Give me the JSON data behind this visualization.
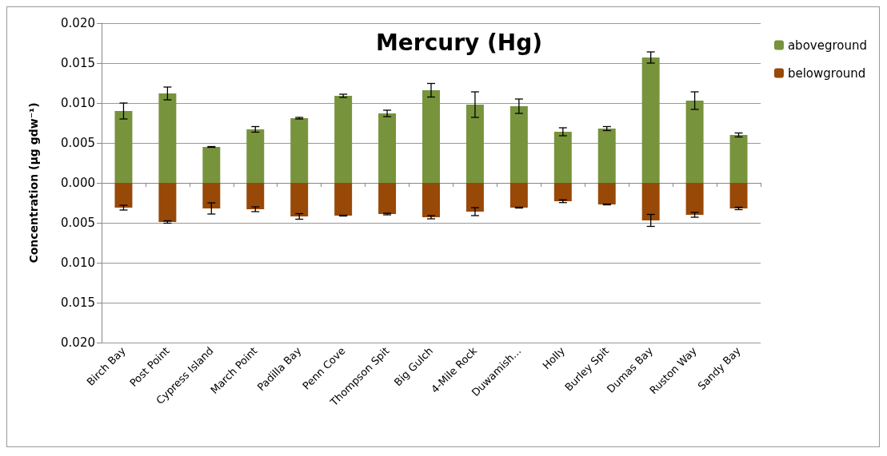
{
  "chart_data": {
    "type": "bar",
    "title": "Mercury (Hg)",
    "ylabel": "Concentration (µg gdw⁻¹)",
    "categories": [
      "Birch Bay",
      "Post Point",
      "Cypress Island",
      "March Point",
      "Padilla Bay",
      "Penn Cove",
      "Thompson Spit",
      "Big Gulch",
      "4-Mile Rock",
      "Duwamish...",
      "Holly",
      "Burley Spit",
      "Dumas Bay",
      "Ruston Way",
      "Sandy Bay"
    ],
    "stacked": true,
    "series": [
      {
        "name": "aboveground",
        "color": "#77933c",
        "values": [
          0.009,
          0.0112,
          0.0045,
          0.0067,
          0.0081,
          0.0109,
          0.0087,
          0.0116,
          0.0098,
          0.0096,
          0.0064,
          0.0068,
          0.0157,
          0.0103,
          0.006
        ],
        "errors": [
          0.001,
          0.0008,
          5e-05,
          0.00035,
          0.0001,
          0.0002,
          0.0004,
          0.00085,
          0.0016,
          0.0009,
          0.0005,
          0.00025,
          0.0007,
          0.0011,
          0.00025
        ]
      },
      {
        "name": "belowground",
        "color": "#984807",
        "values": [
          -0.0031,
          -0.0049,
          -0.0032,
          -0.0033,
          -0.0042,
          -0.0041,
          -0.0039,
          -0.0043,
          -0.0036,
          -0.0031,
          -0.0023,
          -0.0027,
          -0.0047,
          -0.004,
          -0.0032
        ],
        "errors": [
          0.0003,
          0.00015,
          0.0007,
          0.0003,
          0.00035,
          5e-05,
          0.0001,
          0.0002,
          0.0005,
          5e-05,
          0.00017,
          5e-05,
          0.00075,
          0.0003,
          0.00015
        ]
      }
    ],
    "ylim": [
      -0.02,
      0.02
    ],
    "yticks": [
      {
        "value": -0.02,
        "label": "0.020"
      },
      {
        "value": -0.015,
        "label": "0.015"
      },
      {
        "value": -0.01,
        "label": "0.010"
      },
      {
        "value": -0.005,
        "label": "0.005"
      },
      {
        "value": 0,
        "label": "0.000"
      },
      {
        "value": 0.005,
        "label": "0.005"
      },
      {
        "value": 0.01,
        "label": "0.010"
      },
      {
        "value": 0.015,
        "label": "0.015"
      },
      {
        "value": 0.02,
        "label": "0.020"
      }
    ],
    "grid": "y",
    "legend": "top right"
  }
}
